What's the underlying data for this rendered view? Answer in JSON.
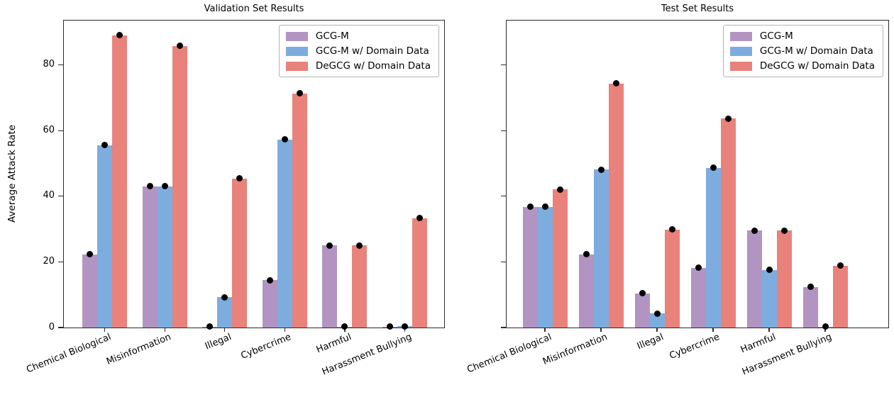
{
  "chart_data": [
    {
      "type": "bar",
      "title": "Validation Set Results",
      "ylabel": "Average Attack Rate",
      "categories": [
        "Chemical Biological",
        "Misinformation",
        "Illegal",
        "Cybercrime",
        "Harmful",
        "Harassment Bullying"
      ],
      "series": [
        {
          "name": "GCG-M",
          "color": "#B294C2",
          "values": [
            22.3,
            43.0,
            0.3,
            14.4,
            25.0,
            0.3
          ]
        },
        {
          "name": "GCG-M w/ Domain Data",
          "color": "#7DACDF",
          "values": [
            55.5,
            43.0,
            9.2,
            57.3,
            0.3,
            0.4
          ]
        },
        {
          "name": "DeGCG w/ Domain Data",
          "color": "#E8827B",
          "values": [
            89.0,
            85.8,
            45.4,
            71.3,
            25.0,
            33.3
          ]
        }
      ],
      "point_markers": {
        "shape": "circle",
        "color": "#000000",
        "placement": "one dot centered on the top of every bar"
      },
      "ylim": [
        0,
        93.5
      ],
      "yticks": [
        0,
        20,
        40,
        60,
        80
      ],
      "show_ytick_labels": true,
      "grid": false,
      "legend_position": "upper right"
    },
    {
      "type": "bar",
      "title": "Test Set Results",
      "ylabel": "",
      "categories": [
        "Chemical Biological",
        "Misinformation",
        "Illegal",
        "Cybercrime",
        "Harmful",
        "Harassment Bullying"
      ],
      "series": [
        {
          "name": "GCG-M",
          "color": "#B294C2",
          "values": [
            36.8,
            22.3,
            10.4,
            18.2,
            29.5,
            12.4
          ]
        },
        {
          "name": "GCG-M w/ Domain Data",
          "color": "#7DACDF",
          "values": [
            36.8,
            48.1,
            4.3,
            48.6,
            17.5,
            0.3
          ]
        },
        {
          "name": "DeGCG w/ Domain Data",
          "color": "#E8827B",
          "values": [
            42.0,
            74.3,
            29.8,
            63.6,
            29.5,
            18.8
          ]
        }
      ],
      "point_markers": {
        "shape": "circle",
        "color": "#000000",
        "placement": "one dot centered on the top of every bar"
      },
      "ylim": [
        0,
        93.5
      ],
      "yticks": [
        0,
        20,
        40,
        60,
        80
      ],
      "show_ytick_labels": false,
      "grid": false,
      "legend_position": "upper right"
    }
  ],
  "colors": {
    "axis": "#2b2b2b",
    "background": "#ffffff",
    "marker": "#000000"
  }
}
